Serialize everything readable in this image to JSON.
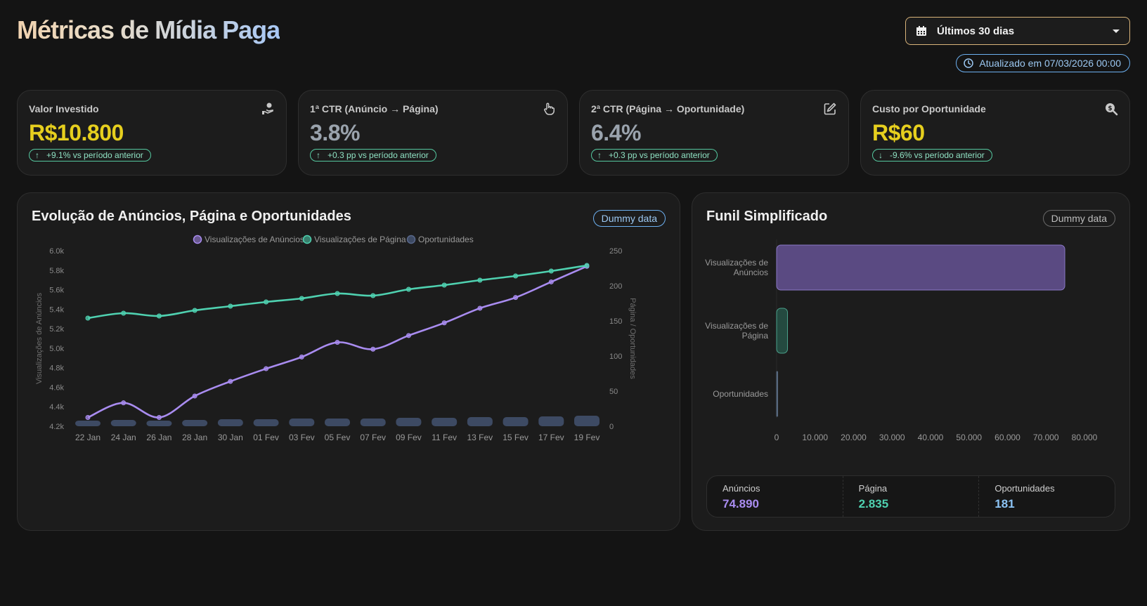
{
  "header": {
    "title": "Métricas de Mídia Paga",
    "period": "Últimos 30 dias",
    "updated": "Atualizado em 07/03/2026 00:00"
  },
  "kpis": [
    {
      "label": "Valor Investido",
      "value": "R$10.800",
      "delta": "+9.1% vs período anterior",
      "arrow": "↑",
      "icon": "money-hand-icon",
      "color": "#e6cf1e"
    },
    {
      "label": "1ª CTR (Anúncio → Página)",
      "value": "3.8%",
      "delta": "+0.3 pp vs período anterior",
      "arrow": "↑",
      "icon": "pointer-hand-icon",
      "color": "#9aa3ad"
    },
    {
      "label": "2ª CTR (Página → Oportunidade)",
      "value": "6.4%",
      "delta": "+0.3 pp vs período anterior",
      "arrow": "↑",
      "icon": "edit-icon",
      "color": "#9aa3ad"
    },
    {
      "label": "Custo por Oportunidade",
      "value": "R$60",
      "delta": "-9.6% vs período anterior",
      "arrow": "↓",
      "icon": "search-dollar-icon",
      "color": "#e6cf1e"
    }
  ],
  "evolution": {
    "title": "Evolução de Anúncios, Página e Oportunidades",
    "badge": "Dummy data"
  },
  "funnel": {
    "title": "Funil Simplificado",
    "badge": "Dummy data",
    "summary": [
      {
        "label": "Anúncios",
        "value": "74.890",
        "color": "#a98cf0"
      },
      {
        "label": "Página",
        "value": "2.835",
        "color": "#4fd1b0"
      },
      {
        "label": "Oportunidades",
        "value": "181",
        "color": "#8cc4f5"
      }
    ]
  },
  "chart_data": [
    {
      "type": "line",
      "legend_position": "top-center",
      "x": [
        "22 Jan",
        "24 Jan",
        "26 Jan",
        "28 Jan",
        "30 Jan",
        "01 Fev",
        "03 Fev",
        "05 Fev",
        "07 Fev",
        "09 Fev",
        "11 Fev",
        "13 Fev",
        "15 Fev",
        "17 Fev",
        "19 Fev"
      ],
      "y_left_label": "Visualizações de Anúncios",
      "y_right_label": "Página / Oportunidades",
      "y_left_range": [
        4200,
        6000
      ],
      "y_right_range": [
        0,
        250
      ],
      "y_left_ticks": [
        "4.2k",
        "4.4k",
        "4.6k",
        "4.8k",
        "5.0k",
        "5.2k",
        "5.4k",
        "5.6k",
        "5.8k",
        "6.0k"
      ],
      "y_right_ticks": [
        "0",
        "50",
        "100",
        "150",
        "200",
        "250"
      ],
      "series": [
        {
          "name": "Visualizações de Anúncios",
          "axis": "left",
          "kind": "line",
          "color": "#a98cf0",
          "values": [
            4290,
            4440,
            4290,
            4510,
            4660,
            4790,
            4910,
            5060,
            4990,
            5130,
            5260,
            5410,
            5520,
            5680,
            5840
          ]
        },
        {
          "name": "Visualizações de Página",
          "axis": "right",
          "kind": "line",
          "color": "#4fd1b0",
          "values": [
            154,
            161,
            157,
            165,
            171,
            177,
            182,
            189,
            186,
            195,
            201,
            208,
            214,
            221,
            229
          ]
        },
        {
          "name": "Oportunidades",
          "axis": "right",
          "kind": "bar",
          "color": "#3d4a63",
          "values": [
            8,
            9,
            8,
            9,
            10,
            10,
            11,
            11,
            11,
            12,
            12,
            13,
            13,
            14,
            15
          ]
        }
      ]
    },
    {
      "type": "bar",
      "orientation": "horizontal",
      "categories": [
        "Visualizações de\nAnúncios",
        "Visualizações de\nPágina",
        "Oportunidades"
      ],
      "values": [
        74890,
        2835,
        181
      ],
      "colors": [
        "#5a4a82",
        "#244a40",
        "#4a5a70"
      ],
      "x_range": [
        0,
        80000
      ],
      "x_ticks": [
        "0",
        "10.000",
        "20.000",
        "30.000",
        "40.000",
        "50.000",
        "60.000",
        "70.000",
        "80.000"
      ]
    }
  ]
}
